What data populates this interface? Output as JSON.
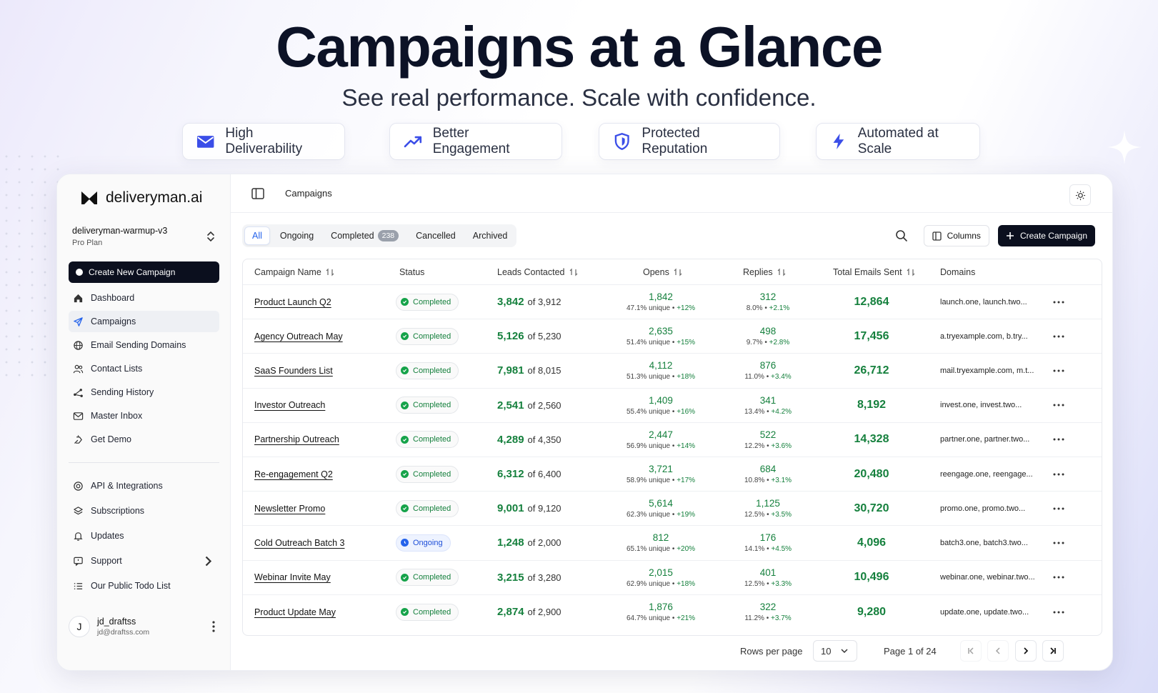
{
  "hero": {
    "title": "Campaigns at a Glance",
    "subtitle": "See real performance. Scale with confidence.",
    "features": [
      {
        "label": "High Deliverability",
        "icon": "mail-icon"
      },
      {
        "label": "Better Engagement",
        "icon": "trending-up-icon"
      },
      {
        "label": "Protected Reputation",
        "icon": "shield-icon"
      },
      {
        "label": "Automated at Scale",
        "icon": "lightning-icon"
      }
    ]
  },
  "sidebar": {
    "brand": "deliveryman.ai",
    "workspace": {
      "name": "deliveryman-warmup-v3",
      "plan": "Pro Plan"
    },
    "create_label": "Create New Campaign",
    "items": [
      {
        "label": "Dashboard",
        "icon": "home-icon"
      },
      {
        "label": "Campaigns",
        "icon": "send-icon"
      },
      {
        "label": "Email Sending Domains",
        "icon": "globe-icon"
      },
      {
        "label": "Contact Lists",
        "icon": "users-icon"
      },
      {
        "label": "Sending History",
        "icon": "share-icon"
      },
      {
        "label": "Master Inbox",
        "icon": "mail-icon"
      },
      {
        "label": "Get Demo",
        "icon": "hand-icon"
      }
    ],
    "secondary": [
      {
        "label": "API & Integrations",
        "icon": "api-icon"
      },
      {
        "label": "Subscriptions",
        "icon": "layers-icon"
      },
      {
        "label": "Updates",
        "icon": "bell-icon"
      },
      {
        "label": "Support",
        "icon": "chat-icon"
      },
      {
        "label": "Our Public Todo List",
        "icon": "list-icon"
      }
    ],
    "user": {
      "initial": "J",
      "name": "jd_draftss",
      "email": "jd@draftss.com"
    }
  },
  "topbar": {
    "breadcrumb": "Campaigns"
  },
  "tabs": [
    {
      "label": "All"
    },
    {
      "label": "Ongoing"
    },
    {
      "label": "Completed",
      "badge": "238"
    },
    {
      "label": "Cancelled"
    },
    {
      "label": "Archived"
    }
  ],
  "toolbar": {
    "columns_label": "Columns",
    "create_label": "Create Campaign"
  },
  "table": {
    "headers": {
      "name": "Campaign Name",
      "status": "Status",
      "leads": "Leads Contacted",
      "opens": "Opens",
      "replies": "Replies",
      "total": "Total Emails Sent",
      "domains": "Domains"
    },
    "rows": [
      {
        "name": "Product Launch Q2",
        "status": "Completed",
        "leads": "3,842",
        "leads_total": "of 3,912",
        "opens": "1,842",
        "opens_pct": "47.1% unique •",
        "opens_delta": "+12%",
        "replies": "312",
        "replies_pct": "8.0% •",
        "replies_delta": "+2.1%",
        "total": "12,864",
        "domains": "launch.one, launch.two..."
      },
      {
        "name": "Agency Outreach May",
        "status": "Completed",
        "leads": "5,126",
        "leads_total": "of 5,230",
        "opens": "2,635",
        "opens_pct": "51.4% unique •",
        "opens_delta": "+15%",
        "replies": "498",
        "replies_pct": "9.7% •",
        "replies_delta": "+2.8%",
        "total": "17,456",
        "domains": "a.tryexample.com, b.try..."
      },
      {
        "name": "SaaS Founders List",
        "status": "Completed",
        "leads": "7,981",
        "leads_total": "of 8,015",
        "opens": "4,112",
        "opens_pct": "51.3% unique •",
        "opens_delta": "+18%",
        "replies": "876",
        "replies_pct": "11.0% •",
        "replies_delta": "+3.4%",
        "total": "26,712",
        "domains": "mail.tryexample.com, m.t..."
      },
      {
        "name": "Investor Outreach",
        "status": "Completed",
        "leads": "2,541",
        "leads_total": "of 2,560",
        "opens": "1,409",
        "opens_pct": "55.4% unique •",
        "opens_delta": "+16%",
        "replies": "341",
        "replies_pct": "13.4% •",
        "replies_delta": "+4.2%",
        "total": "8,192",
        "domains": "invest.one, invest.two..."
      },
      {
        "name": "Partnership Outreach",
        "status": "Completed",
        "leads": "4,289",
        "leads_total": "of 4,350",
        "opens": "2,447",
        "opens_pct": "56.9% unique •",
        "opens_delta": "+14%",
        "replies": "522",
        "replies_pct": "12.2% •",
        "replies_delta": "+3.6%",
        "total": "14,328",
        "domains": "partner.one, partner.two..."
      },
      {
        "name": "Re-engagement Q2",
        "status": "Completed",
        "leads": "6,312",
        "leads_total": "of 6,400",
        "opens": "3,721",
        "opens_pct": "58.9% unique •",
        "opens_delta": "+17%",
        "replies": "684",
        "replies_pct": "10.8% •",
        "replies_delta": "+3.1%",
        "total": "20,480",
        "domains": "reengage.one, reengage..."
      },
      {
        "name": "Newsletter Promo",
        "status": "Completed",
        "leads": "9,001",
        "leads_total": "of 9,120",
        "opens": "5,614",
        "opens_pct": "62.3% unique •",
        "opens_delta": "+19%",
        "replies": "1,125",
        "replies_pct": "12.5% •",
        "replies_delta": "+3.5%",
        "total": "30,720",
        "domains": "promo.one, promo.two..."
      },
      {
        "name": "Cold Outreach Batch 3",
        "status": "Ongoing",
        "leads": "1,248",
        "leads_total": "of 2,000",
        "opens": "812",
        "opens_pct": "65.1% unique •",
        "opens_delta": "+20%",
        "replies": "176",
        "replies_pct": "14.1% •",
        "replies_delta": "+4.5%",
        "total": "4,096",
        "domains": "batch3.one, batch3.two..."
      },
      {
        "name": "Webinar Invite May",
        "status": "Completed",
        "leads": "3,215",
        "leads_total": "of 3,280",
        "opens": "2,015",
        "opens_pct": "62.9% unique •",
        "opens_delta": "+18%",
        "replies": "401",
        "replies_pct": "12.5% •",
        "replies_delta": "+3.3%",
        "total": "10,496",
        "domains": "webinar.one, webinar.two..."
      },
      {
        "name": "Product Update May",
        "status": "Completed",
        "leads": "2,874",
        "leads_total": "of 2,900",
        "opens": "1,876",
        "opens_pct": "64.7% unique •",
        "opens_delta": "+21%",
        "replies": "322",
        "replies_pct": "11.2% •",
        "replies_delta": "+3.7%",
        "total": "9,280",
        "domains": "update.one, update.two..."
      }
    ]
  },
  "pagination": {
    "rows_per_page_label": "Rows per page",
    "rows_per_page": "10",
    "page_label": "Page 1 of 24"
  },
  "colors": {
    "accent": "#2563eb",
    "success": "#15803d",
    "primary_button": "#0b0f1e"
  }
}
